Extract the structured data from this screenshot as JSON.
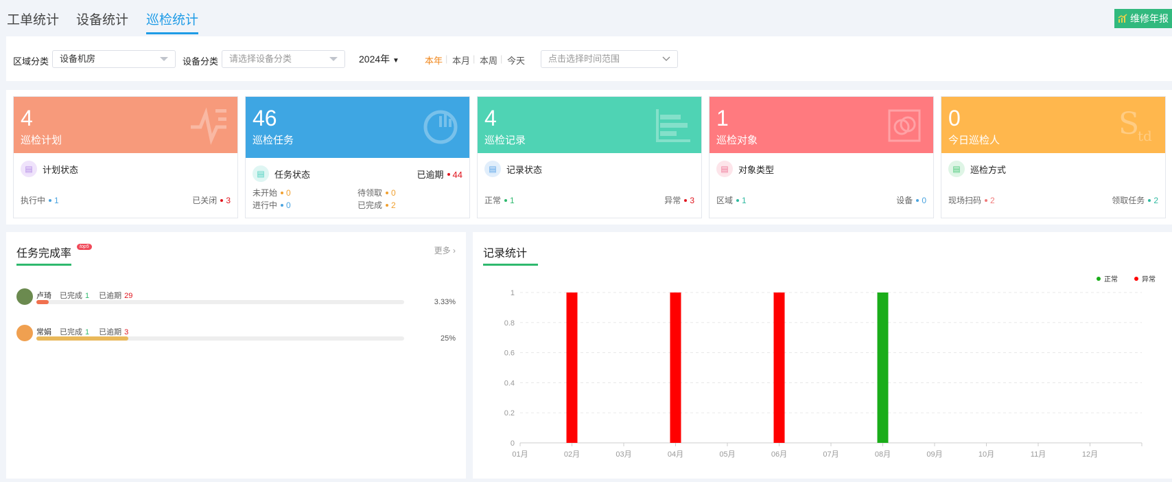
{
  "tabs": [
    {
      "label": "工单统计",
      "active": false
    },
    {
      "label": "设备统计",
      "active": false
    },
    {
      "label": "巡检统计",
      "active": true
    }
  ],
  "report_button": {
    "label": "维修年报",
    "icon": "chart-icon"
  },
  "filters": {
    "area_label": "区域分类",
    "area_value": "设备机房",
    "device_label": "设备分类",
    "device_placeholder": "请选择设备分类",
    "year": "2024年",
    "periods": [
      "本年",
      "本月",
      "本周",
      "今天"
    ],
    "active_period": "本年",
    "range_placeholder": "点击选择时间范围"
  },
  "colors": {
    "accent": "#1e9be6",
    "green": "#2fb96e",
    "normal": "#1aad19",
    "abnormal": "#ff0000"
  },
  "cards": [
    {
      "value": "4",
      "title": "巡检计划",
      "color": "#f79a7b",
      "icon": "pulse-icon",
      "sub": "计划状态",
      "sub_icon_bg": "#efe3fb",
      "sub_icon_color": "#b58ce6",
      "stats": [
        {
          "label": "执行中",
          "value": "1",
          "color": "#4aa3df"
        },
        {
          "label": "已关闭",
          "value": "3",
          "color": "#e0161f"
        }
      ]
    },
    {
      "value": "46",
      "title": "巡检任务",
      "color": "#3ea6e3",
      "icon": "pie-chart-icon",
      "sub": "任务状态",
      "sub_icon_bg": "#dff6f3",
      "sub_icon_color": "#4fd1c0",
      "overdue_label": "已逾期",
      "overdue_value": "44",
      "stats": [
        {
          "label": "未开始",
          "value": "0",
          "color": "#f0a030"
        },
        {
          "label": "待领取",
          "value": "0",
          "color": "#f0a030"
        },
        {
          "label": "进行中",
          "value": "0",
          "color": "#4aa3df"
        },
        {
          "label": "已完成",
          "value": "2",
          "color": "#f0a030"
        }
      ]
    },
    {
      "value": "4",
      "title": "巡检记录",
      "color": "#4fd3b4",
      "icon": "bar-chart-icon",
      "sub": "记录状态",
      "sub_icon_bg": "#e1eefb",
      "sub_icon_color": "#5aa4e8",
      "stats": [
        {
          "label": "正常",
          "value": "1",
          "color": "#2fb96e"
        },
        {
          "label": "异常",
          "value": "3",
          "color": "#e0161f"
        }
      ]
    },
    {
      "value": "1",
      "title": "巡检对象",
      "color": "#ff7a7f",
      "icon": "target-icon",
      "sub": "对象类型",
      "sub_icon_bg": "#fde5ea",
      "sub_icon_color": "#f07a9a",
      "stats": [
        {
          "label": "区域",
          "value": "1",
          "color": "#2fb9a0"
        },
        {
          "label": "设备",
          "value": "0",
          "color": "#4aa3df"
        }
      ]
    },
    {
      "value": "0",
      "title": "今日巡检人",
      "color": "#ffb74d",
      "icon": "std-icon",
      "sub": "巡检方式",
      "sub_icon_bg": "#dff5e6",
      "sub_icon_color": "#4cc97a",
      "stats": [
        {
          "label": "现场扫码",
          "value": "2",
          "color": "#f07a7a"
        },
        {
          "label": "领取任务",
          "value": "2",
          "color": "#2fb9a0"
        }
      ]
    }
  ],
  "completion": {
    "title": "任务完成率",
    "badge": "top5",
    "more": "更多",
    "done_label": "已完成",
    "overdue_label": "已逾期",
    "people": [
      {
        "name": "卢琦",
        "done": "1",
        "overdue": "29",
        "percent": "3.33%",
        "progress": 3.33,
        "bar_color": "#f0704e"
      },
      {
        "name": "常娟",
        "done": "1",
        "overdue": "3",
        "percent": "25%",
        "progress": 25,
        "bar_color": "#e9b85a"
      }
    ]
  },
  "chart_data": {
    "type": "bar",
    "title": "记录统计",
    "categories": [
      "01月",
      "02月",
      "03月",
      "04月",
      "05月",
      "06月",
      "07月",
      "08月",
      "09月",
      "10月",
      "11月",
      "12月"
    ],
    "series": [
      {
        "name": "正常",
        "color": "#1aad19",
        "values": [
          0,
          0,
          0,
          0,
          0,
          0,
          0,
          1,
          0,
          0,
          0,
          0
        ]
      },
      {
        "name": "异常",
        "color": "#ff0000",
        "values": [
          0,
          1,
          0,
          1,
          0,
          1,
          0,
          0,
          0,
          0,
          0,
          0
        ]
      }
    ],
    "ylim": [
      0,
      1
    ],
    "yticks": [
      "0",
      "0.2",
      "0.4",
      "0.6",
      "0.8",
      "1"
    ],
    "grid": true,
    "legend": "top-right"
  }
}
